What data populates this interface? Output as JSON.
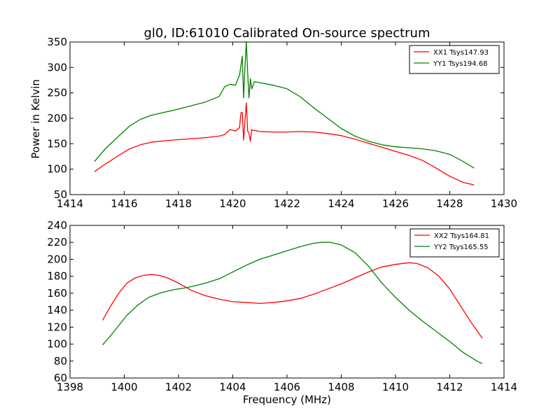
{
  "figure": {
    "title": "gl0, ID:61010 Calibrated On-source spectrum",
    "ylabel": "Power in Kelvin",
    "xlabel": "Frequency (MHz)"
  },
  "chart_data": [
    {
      "type": "line",
      "xlim": [
        1414,
        1430
      ],
      "ylim": [
        50,
        350
      ],
      "xticks": [
        1414,
        1416,
        1418,
        1420,
        1422,
        1424,
        1426,
        1428,
        1430
      ],
      "yticks": [
        50,
        100,
        150,
        200,
        250,
        300,
        350
      ],
      "legend": "top-right",
      "series": [
        {
          "name": "XX1 Tsys147.93",
          "color": "#ff0000",
          "x": [
            1414.9,
            1415.3,
            1415.8,
            1416.2,
            1416.6,
            1417,
            1417.5,
            1418,
            1418.5,
            1419,
            1419.5,
            1419.7,
            1419.9,
            1420.1,
            1420.25,
            1420.3,
            1420.35,
            1420.4,
            1420.45,
            1420.5,
            1420.55,
            1420.6,
            1420.65,
            1420.7,
            1420.75,
            1420.8,
            1421,
            1421.5,
            1422,
            1422.5,
            1423,
            1423.5,
            1424,
            1424.5,
            1425,
            1425.5,
            1426,
            1426.5,
            1427,
            1427.5,
            1428,
            1428.5,
            1428.9
          ],
          "y": [
            95,
            110,
            127,
            140,
            148,
            153,
            156,
            158,
            160,
            162,
            165,
            168,
            178,
            175,
            182,
            210,
            212,
            157,
            195,
            230,
            175,
            170,
            155,
            178,
            176,
            176,
            174,
            173,
            173,
            174,
            173,
            170,
            166,
            159,
            151,
            143,
            135,
            127,
            117,
            102,
            86,
            74,
            69
          ]
        },
        {
          "name": "YY1 Tsys194.68",
          "color": "#008000",
          "x": [
            1414.9,
            1415.3,
            1415.8,
            1416.2,
            1416.6,
            1417,
            1417.5,
            1418,
            1418.5,
            1419,
            1419.5,
            1419.7,
            1419.9,
            1420.1,
            1420.25,
            1420.35,
            1420.4,
            1420.45,
            1420.5,
            1420.55,
            1420.6,
            1420.65,
            1420.7,
            1420.8,
            1421,
            1421.5,
            1422,
            1422.5,
            1423,
            1423.5,
            1424,
            1424.5,
            1425,
            1425.5,
            1426,
            1426.5,
            1427,
            1427.5,
            1428,
            1428.5,
            1428.9
          ],
          "y": [
            115,
            140,
            165,
            185,
            198,
            206,
            212,
            218,
            225,
            232,
            243,
            262,
            267,
            265,
            285,
            322,
            240,
            300,
            350,
            290,
            240,
            278,
            258,
            272,
            270,
            265,
            258,
            242,
            220,
            200,
            180,
            165,
            155,
            148,
            144,
            142,
            140,
            136,
            129,
            115,
            102
          ]
        }
      ]
    },
    {
      "type": "line",
      "xlim": [
        1398,
        1414
      ],
      "ylim": [
        60,
        240
      ],
      "xticks": [
        1398,
        1400,
        1402,
        1404,
        1406,
        1408,
        1410,
        1412,
        1414
      ],
      "yticks": [
        60,
        80,
        100,
        120,
        140,
        160,
        180,
        200,
        220,
        240
      ],
      "legend": "top-right",
      "series": [
        {
          "name": "XX2 Tsys164.81",
          "color": "#ff0000",
          "x": [
            1399.2,
            1399.5,
            1399.8,
            1400.1,
            1400.4,
            1400.7,
            1401,
            1401.3,
            1401.6,
            1402,
            1402.5,
            1403,
            1403.5,
            1404,
            1404.5,
            1405,
            1405.5,
            1406,
            1406.5,
            1407,
            1407.5,
            1408,
            1408.5,
            1409,
            1409.5,
            1410,
            1410.5,
            1410.8,
            1411.2,
            1411.6,
            1412,
            1412.4,
            1412.8,
            1413.2
          ],
          "y": [
            128,
            145,
            160,
            172,
            178,
            181,
            182,
            181,
            178,
            172,
            163,
            157,
            153,
            150,
            149,
            148,
            149,
            151,
            154,
            159,
            165,
            171,
            178,
            185,
            191,
            194,
            196,
            195,
            190,
            180,
            165,
            145,
            125,
            107
          ]
        },
        {
          "name": "YY2 Tsys165.55",
          "color": "#008000",
          "x": [
            1399.2,
            1399.5,
            1399.8,
            1400.1,
            1400.5,
            1400.9,
            1401.3,
            1401.8,
            1402.2,
            1402.5,
            1403,
            1403.5,
            1404,
            1404.5,
            1405,
            1405.5,
            1406,
            1406.5,
            1407,
            1407.3,
            1407.6,
            1408,
            1408.5,
            1409,
            1409.5,
            1410,
            1410.5,
            1411,
            1411.5,
            1412,
            1412.5,
            1413,
            1413.2
          ],
          "y": [
            99,
            110,
            122,
            134,
            146,
            155,
            160,
            164,
            166,
            168,
            172,
            177,
            185,
            193,
            200,
            205,
            210,
            215,
            219,
            220,
            220,
            217,
            208,
            192,
            172,
            155,
            140,
            127,
            115,
            103,
            90,
            80,
            77
          ]
        }
      ]
    }
  ]
}
